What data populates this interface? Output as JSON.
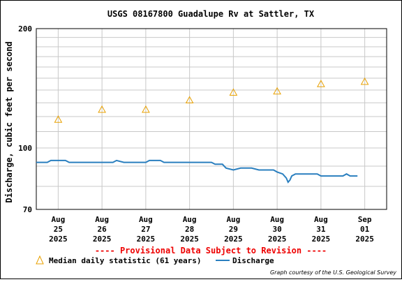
{
  "chart_data": {
    "type": "line",
    "title": "USGS 08167800 Guadalupe Rv at Sattler, TX",
    "ylabel": "Discharge, cubic feet per second",
    "ylim": [
      70,
      200
    ],
    "yscale": "log",
    "y_ticks": [
      {
        "value": 200,
        "label": "200"
      },
      {
        "value": 100,
        "label": "100"
      },
      {
        "value": 70,
        "label": "70"
      }
    ],
    "y_minor_gridlines": [
      80,
      90,
      110,
      120,
      130,
      140,
      150,
      160,
      170,
      180,
      190
    ],
    "grid": true,
    "x_ticks": [
      {
        "date": "2025-08-25",
        "label": [
          "Aug",
          "25",
          "2025"
        ]
      },
      {
        "date": "2025-08-26",
        "label": [
          "Aug",
          "26",
          "2025"
        ]
      },
      {
        "date": "2025-08-27",
        "label": [
          "Aug",
          "27",
          "2025"
        ]
      },
      {
        "date": "2025-08-28",
        "label": [
          "Aug",
          "28",
          "2025"
        ]
      },
      {
        "date": "2025-08-29",
        "label": [
          "Aug",
          "29",
          "2025"
        ]
      },
      {
        "date": "2025-08-30",
        "label": [
          "Aug",
          "30",
          "2025"
        ]
      },
      {
        "date": "2025-08-31",
        "label": [
          "Aug",
          "31",
          "2025"
        ]
      },
      {
        "date": "2025-09-01",
        "label": [
          "Sep",
          "01",
          "2025"
        ]
      }
    ],
    "xlim": [
      "2025-08-24T12:00",
      "2025-09-01T12:00"
    ],
    "series": [
      {
        "name": "Median daily statistic (61 years)",
        "kind": "markers",
        "color": "#e8a000",
        "points": [
          {
            "x": "2025-08-25T00:00",
            "y": 118
          },
          {
            "x": "2025-08-26T00:00",
            "y": 125
          },
          {
            "x": "2025-08-27T00:00",
            "y": 125
          },
          {
            "x": "2025-08-28T00:00",
            "y": 132
          },
          {
            "x": "2025-08-29T00:00",
            "y": 138
          },
          {
            "x": "2025-08-30T00:00",
            "y": 139
          },
          {
            "x": "2025-08-31T00:00",
            "y": 145
          },
          {
            "x": "2025-09-01T00:00",
            "y": 147
          }
        ]
      },
      {
        "name": "Discharge",
        "kind": "line",
        "color": "#2a7fbf",
        "points": [
          {
            "x": "2025-08-24T12:00",
            "y": 92
          },
          {
            "x": "2025-08-24T18:00",
            "y": 92
          },
          {
            "x": "2025-08-24T20:00",
            "y": 93
          },
          {
            "x": "2025-08-25T04:00",
            "y": 93
          },
          {
            "x": "2025-08-25T06:00",
            "y": 92
          },
          {
            "x": "2025-08-26T06:00",
            "y": 92
          },
          {
            "x": "2025-08-26T08:00",
            "y": 93
          },
          {
            "x": "2025-08-26T12:00",
            "y": 92
          },
          {
            "x": "2025-08-27T00:00",
            "y": 92
          },
          {
            "x": "2025-08-27T02:00",
            "y": 93
          },
          {
            "x": "2025-08-27T08:00",
            "y": 93
          },
          {
            "x": "2025-08-27T10:00",
            "y": 92
          },
          {
            "x": "2025-08-28T00:00",
            "y": 92
          },
          {
            "x": "2025-08-28T12:00",
            "y": 92
          },
          {
            "x": "2025-08-28T14:00",
            "y": 91
          },
          {
            "x": "2025-08-28T18:00",
            "y": 91
          },
          {
            "x": "2025-08-28T20:00",
            "y": 89
          },
          {
            "x": "2025-08-29T00:00",
            "y": 88
          },
          {
            "x": "2025-08-29T04:00",
            "y": 89
          },
          {
            "x": "2025-08-29T10:00",
            "y": 89
          },
          {
            "x": "2025-08-29T14:00",
            "y": 88
          },
          {
            "x": "2025-08-29T22:00",
            "y": 88
          },
          {
            "x": "2025-08-30T00:00",
            "y": 87
          },
          {
            "x": "2025-08-30T03:00",
            "y": 86
          },
          {
            "x": "2025-08-30T05:00",
            "y": 84
          },
          {
            "x": "2025-08-30T06:00",
            "y": 82
          },
          {
            "x": "2025-08-30T07:00",
            "y": 83
          },
          {
            "x": "2025-08-30T08:00",
            "y": 85
          },
          {
            "x": "2025-08-30T10:00",
            "y": 86
          },
          {
            "x": "2025-08-30T22:00",
            "y": 86
          },
          {
            "x": "2025-08-31T00:00",
            "y": 85
          },
          {
            "x": "2025-08-31T12:00",
            "y": 85
          },
          {
            "x": "2025-08-31T14:00",
            "y": 86
          },
          {
            "x": "2025-08-31T16:00",
            "y": 85
          },
          {
            "x": "2025-08-31T20:00",
            "y": 85
          }
        ]
      }
    ],
    "legend_position": "bottom-left"
  },
  "provisional_notice": "---- Provisional Data Subject to Revision ----",
  "legend": {
    "median_label": "Median daily statistic (61 years)",
    "discharge_label": "Discharge"
  },
  "credit": "Graph courtesy of the U.S. Geological Survey"
}
